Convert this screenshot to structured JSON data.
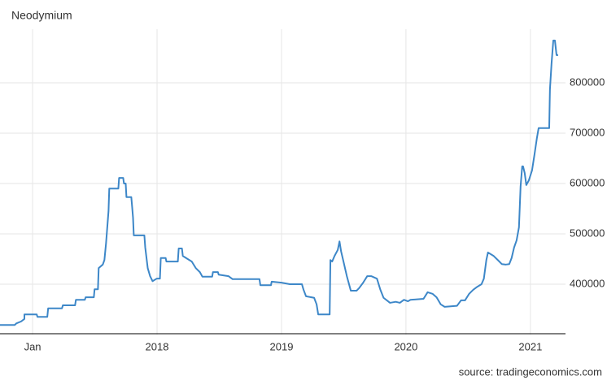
{
  "chart_data": {
    "type": "line",
    "title": "Neodymium",
    "source": "source: tradingeconomics.com",
    "x": [
      2016.738,
      2016.856,
      2016.869,
      2016.908,
      2016.934,
      2016.934,
      2017.033,
      2017.039,
      2017.118,
      2017.125,
      2017.236,
      2017.243,
      2017.341,
      2017.348,
      2017.42,
      2017.426,
      2017.492,
      2017.498,
      2017.525,
      2017.531,
      2017.564,
      2017.577,
      2017.59,
      2017.61,
      2017.616,
      2017.689,
      2017.695,
      2017.728,
      2017.734,
      2017.748,
      2017.754,
      2017.793,
      2017.8,
      2017.807,
      2017.813,
      2017.898,
      2017.905,
      2017.925,
      2017.944,
      2017.964,
      2017.997,
      2018.023,
      2018.03,
      2018.069,
      2018.075,
      2018.167,
      2018.174,
      2018.2,
      2018.207,
      2018.233,
      2018.279,
      2018.311,
      2018.344,
      2018.364,
      2018.443,
      2018.449,
      2018.489,
      2018.495,
      2018.574,
      2018.607,
      2018.823,
      2018.83,
      2018.915,
      2018.921,
      2019.0,
      2019.066,
      2019.164,
      2019.177,
      2019.197,
      2019.262,
      2019.282,
      2019.295,
      2019.387,
      2019.393,
      2019.407,
      2019.426,
      2019.452,
      2019.466,
      2019.479,
      2019.498,
      2019.525,
      2019.557,
      2019.603,
      2019.623,
      2019.656,
      2019.689,
      2019.721,
      2019.767,
      2019.793,
      2019.82,
      2019.872,
      2019.918,
      2019.951,
      2019.984,
      2020.016,
      2020.036,
      2020.141,
      2020.174,
      2020.213,
      2020.246,
      2020.279,
      2020.311,
      2020.41,
      2020.443,
      2020.475,
      2020.508,
      2020.541,
      2020.574,
      2020.607,
      2020.626,
      2020.646,
      2020.659,
      2020.705,
      2020.738,
      2020.77,
      2020.803,
      2020.83,
      2020.849,
      2020.869,
      2020.889,
      2020.908,
      2020.921,
      2020.934,
      2020.941,
      2020.954,
      2020.967,
      2020.987,
      2021.013,
      2021.033,
      2021.052,
      2021.066,
      2021.151,
      2021.157,
      2021.17,
      2021.184,
      2021.197,
      2021.21,
      2021.223
    ],
    "series": [
      {
        "name": "Neodymium",
        "color": "#3d87c8",
        "values": [
          319000,
          319000,
          322000,
          326000,
          331000,
          340000,
          340000,
          335000,
          335000,
          352000,
          352000,
          358000,
          358000,
          369000,
          369000,
          374000,
          374000,
          390000,
          390000,
          432000,
          439000,
          448000,
          481000,
          545000,
          590000,
          590000,
          611000,
          611000,
          600000,
          600000,
          573000,
          573000,
          553000,
          532000,
          497000,
          497000,
          473000,
          432000,
          416000,
          406000,
          411000,
          411000,
          452000,
          452000,
          445000,
          445000,
          471000,
          471000,
          456000,
          452000,
          445000,
          432000,
          424000,
          415000,
          415000,
          424000,
          424000,
          419000,
          416000,
          410000,
          410000,
          398000,
          398000,
          405000,
          403000,
          400000,
          400000,
          389000,
          376000,
          373000,
          360000,
          340000,
          340000,
          448000,
          445000,
          456000,
          468000,
          485000,
          465000,
          445000,
          416000,
          387000,
          387000,
          392000,
          403000,
          416000,
          416000,
          411000,
          390000,
          373000,
          363000,
          365000,
          363000,
          369000,
          366000,
          369000,
          371000,
          384000,
          381000,
          374000,
          360000,
          355000,
          357000,
          368000,
          368000,
          381000,
          389000,
          395000,
          400000,
          411000,
          448000,
          463000,
          456000,
          448000,
          440000,
          439000,
          440000,
          452000,
          473000,
          487000,
          513000,
          594000,
          634000,
          634000,
          621000,
          597000,
          606000,
          626000,
          658000,
          690000,
          710000,
          710000,
          787000,
          839000,
          884000,
          884000,
          855000,
          855000
        ]
      }
    ],
    "xlim": [
      2016.738,
      2021.282
    ],
    "xticks": [
      {
        "value": 2017,
        "label": "Jan"
      },
      2018,
      2019,
      2020,
      2021
    ],
    "ylim": [
      300000,
      900000
    ],
    "yticks": [
      400000,
      500000,
      600000,
      700000,
      800000
    ],
    "grid": true
  }
}
